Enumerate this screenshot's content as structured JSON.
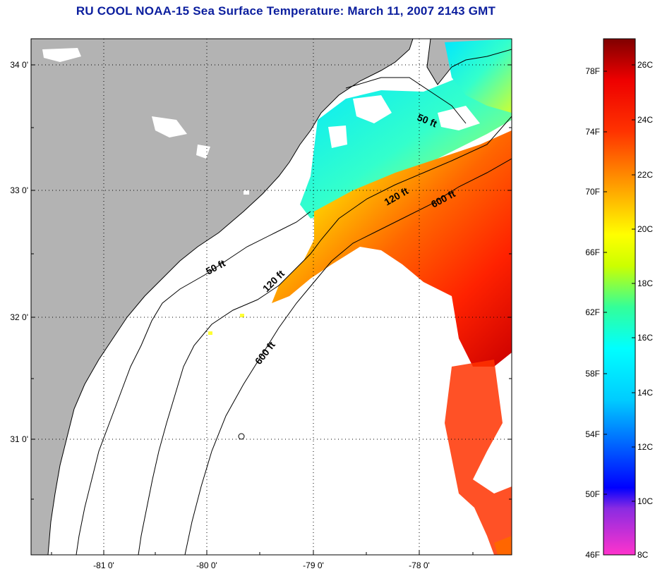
{
  "title": "RU COOL  NOAA-15  Sea Surface Temperature:  March 11, 2007 2143 GMT",
  "map": {
    "lat_ticks": [
      "34 0'",
      "33 0'",
      "32 0'",
      "31 0'"
    ],
    "lon_ticks": [
      "-81 0'",
      "-80 0'",
      "-79 0'",
      "-78 0'"
    ],
    "contours": [
      "50 ft",
      "50 ft",
      "120 ft",
      "120 ft",
      "600 ft",
      "600 ft"
    ],
    "colors": {
      "land": "#b3b3b3",
      "cloud": "#ffffff",
      "contour": "#000000"
    }
  },
  "colorbar": {
    "f_labels": [
      "78F",
      "74F",
      "70F",
      "66F",
      "62F",
      "58F",
      "54F",
      "50F",
      "46F"
    ],
    "c_labels": [
      "26C",
      "24C",
      "22C",
      "20C",
      "18C",
      "16C",
      "14C",
      "12C",
      "10C",
      "8C"
    ],
    "colors": [
      "#ff33cc",
      "#8a2be2",
      "#0000ff",
      "#00ccff",
      "#00ffff",
      "#33ff99",
      "#ccff00",
      "#ffff00",
      "#ff9900",
      "#ff3300",
      "#ee0000",
      "#800000"
    ]
  }
}
